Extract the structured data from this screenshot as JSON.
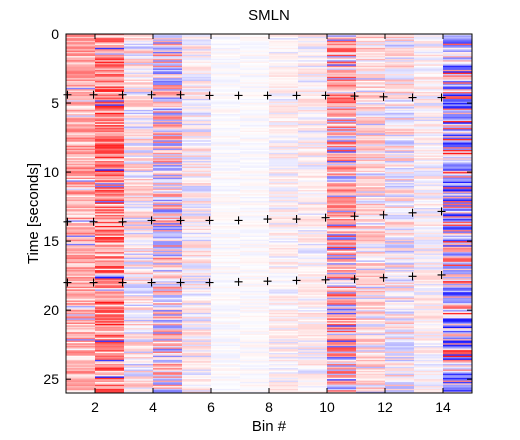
{
  "chart_data": {
    "type": "heatmap",
    "title": "SMLN",
    "xlabel": "Bin #",
    "ylabel": "Time [seconds]",
    "xlim": [
      1,
      15
    ],
    "ylim": [
      0,
      26
    ],
    "y_reversed": true,
    "xticks": [
      2,
      4,
      6,
      8,
      10,
      12,
      14
    ],
    "yticks": [
      0,
      5,
      10,
      15,
      20,
      25
    ],
    "colormap": {
      "negative": "#0000ff",
      "zero": "#ffffff",
      "positive": "#ff0000"
    },
    "n_bins": 14,
    "n_time_rows": 260,
    "bin_mean_intensity": [
      0.35,
      0.55,
      0.2,
      0.35,
      0.15,
      0.04,
      0.04,
      0.1,
      0.12,
      0.45,
      0.22,
      0.2,
      0.12,
      0.55
    ],
    "bin_sign_bias": [
      0.95,
      0.95,
      0.6,
      0.5,
      0.6,
      0.4,
      0.5,
      0.7,
      0.7,
      0.75,
      0.75,
      0.55,
      0.5,
      0.35
    ],
    "event_markers": [
      {
        "y": [
          4.4,
          4.4,
          4.4,
          4.4,
          4.4,
          4.45,
          4.45,
          4.45,
          4.45,
          4.45,
          4.5,
          4.55,
          4.6,
          4.6
        ]
      },
      {
        "y": [
          13.6,
          13.6,
          13.6,
          13.5,
          13.5,
          13.5,
          13.5,
          13.4,
          13.4,
          13.3,
          13.2,
          13.1,
          12.95,
          12.85
        ]
      },
      {
        "y": [
          18.0,
          18.0,
          18.0,
          18.0,
          18.0,
          18.0,
          17.95,
          17.9,
          17.85,
          17.8,
          17.75,
          17.65,
          17.55,
          17.45
        ]
      }
    ],
    "marker_x": [
      1.05,
      1.95,
      2.95,
      3.95,
      4.95,
      5.95,
      6.95,
      7.95,
      8.95,
      9.95,
      10.95,
      11.95,
      12.95,
      13.95
    ],
    "grid": false
  }
}
